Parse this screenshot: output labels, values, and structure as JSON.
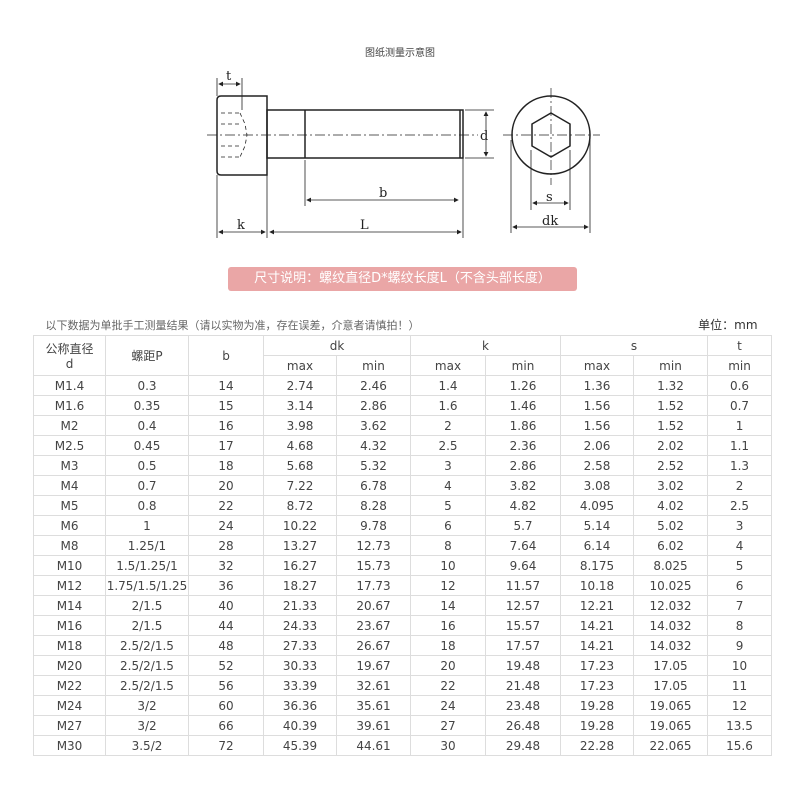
{
  "diagram": {
    "title": "图纸测量示意图",
    "labels": {
      "t": "t",
      "k": "k",
      "L": "L",
      "b": "b",
      "d": "d",
      "s": "s",
      "dk": "dk"
    }
  },
  "banner": "尺寸说明：螺纹直径D*螺纹长度L（不含头部长度）",
  "table": {
    "note": "以下数据为单批手工测量结果（请以实物为准，存在误差，介意者请慎拍！）",
    "unit": "单位：mm",
    "headers": {
      "d_line1": "公称直径",
      "d_line2": "d",
      "pitch": "螺距P",
      "b": "b",
      "dk": "dk",
      "k": "k",
      "s": "s",
      "t": "t",
      "max": "max",
      "min": "min"
    },
    "rows": [
      [
        "M1.4",
        "0.3",
        "14",
        "2.74",
        "2.46",
        "1.4",
        "1.26",
        "1.36",
        "1.32",
        "0.6"
      ],
      [
        "M1.6",
        "0.35",
        "15",
        "3.14",
        "2.86",
        "1.6",
        "1.46",
        "1.56",
        "1.52",
        "0.7"
      ],
      [
        "M2",
        "0.4",
        "16",
        "3.98",
        "3.62",
        "2",
        "1.86",
        "1.56",
        "1.52",
        "1"
      ],
      [
        "M2.5",
        "0.45",
        "17",
        "4.68",
        "4.32",
        "2.5",
        "2.36",
        "2.06",
        "2.02",
        "1.1"
      ],
      [
        "M3",
        "0.5",
        "18",
        "5.68",
        "5.32",
        "3",
        "2.86",
        "2.58",
        "2.52",
        "1.3"
      ],
      [
        "M4",
        "0.7",
        "20",
        "7.22",
        "6.78",
        "4",
        "3.82",
        "3.08",
        "3.02",
        "2"
      ],
      [
        "M5",
        "0.8",
        "22",
        "8.72",
        "8.28",
        "5",
        "4.82",
        "4.095",
        "4.02",
        "2.5"
      ],
      [
        "M6",
        "1",
        "24",
        "10.22",
        "9.78",
        "6",
        "5.7",
        "5.14",
        "5.02",
        "3"
      ],
      [
        "M8",
        "1.25/1",
        "28",
        "13.27",
        "12.73",
        "8",
        "7.64",
        "6.14",
        "6.02",
        "4"
      ],
      [
        "M10",
        "1.5/1.25/1",
        "32",
        "16.27",
        "15.73",
        "10",
        "9.64",
        "8.175",
        "8.025",
        "5"
      ],
      [
        "M12",
        "1.75/1.5/1.25",
        "36",
        "18.27",
        "17.73",
        "12",
        "11.57",
        "10.18",
        "10.025",
        "6"
      ],
      [
        "M14",
        "2/1.5",
        "40",
        "21.33",
        "20.67",
        "14",
        "12.57",
        "12.21",
        "12.032",
        "7"
      ],
      [
        "M16",
        "2/1.5",
        "44",
        "24.33",
        "23.67",
        "16",
        "15.57",
        "14.21",
        "14.032",
        "8"
      ],
      [
        "M18",
        "2.5/2/1.5",
        "48",
        "27.33",
        "26.67",
        "18",
        "17.57",
        "14.21",
        "14.032",
        "9"
      ],
      [
        "M20",
        "2.5/2/1.5",
        "52",
        "30.33",
        "19.67",
        "20",
        "19.48",
        "17.23",
        "17.05",
        "10"
      ],
      [
        "M22",
        "2.5/2/1.5",
        "56",
        "33.39",
        "32.61",
        "22",
        "21.48",
        "17.23",
        "17.05",
        "11"
      ],
      [
        "M24",
        "3/2",
        "60",
        "36.36",
        "35.61",
        "24",
        "23.48",
        "19.28",
        "19.065",
        "12"
      ],
      [
        "M27",
        "3/2",
        "66",
        "40.39",
        "39.61",
        "27",
        "26.48",
        "19.28",
        "19.065",
        "13.5"
      ],
      [
        "M30",
        "3.5/2",
        "72",
        "45.39",
        "44.61",
        "30",
        "29.48",
        "22.28",
        "22.065",
        "15.6"
      ]
    ]
  }
}
